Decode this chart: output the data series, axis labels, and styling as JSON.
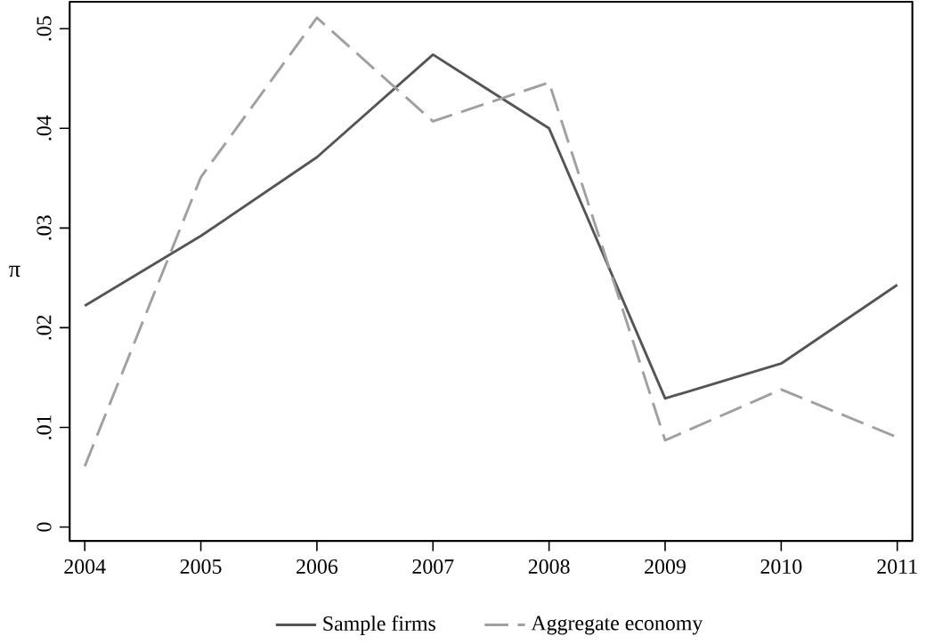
{
  "chart_data": {
    "type": "line",
    "ylabel": "π",
    "x": [
      2004,
      2005,
      2006,
      2007,
      2008,
      2009,
      2010,
      2011
    ],
    "series": [
      {
        "name": "Sample firms",
        "color": "#555555",
        "line_style": "solid",
        "values": [
          0.0222,
          0.0292,
          0.0371,
          0.0474,
          0.04,
          0.0129,
          0.0164,
          0.0243
        ]
      },
      {
        "name": "Aggregate economy",
        "color": "#a0a0a0",
        "line_style": "dashed",
        "values": [
          0.0061,
          0.0351,
          0.0511,
          0.0407,
          0.0446,
          0.0087,
          0.0138,
          0.009
        ]
      }
    ],
    "xlim": [
      2003.87,
      2011.13
    ],
    "ylim": [
      -0.0014,
      0.0527
    ],
    "xticks": [
      2004,
      2005,
      2006,
      2007,
      2008,
      2009,
      2010,
      2011
    ],
    "yticks": [
      0,
      {
        "value": 0.01,
        "label": ".01"
      },
      {
        "value": 0.02,
        "label": ".02"
      },
      {
        "value": 0.03,
        "label": ".03"
      },
      {
        "value": 0.04,
        "label": ".04"
      },
      {
        "value": 0.05,
        "label": ".05"
      }
    ],
    "grid": false,
    "legend": "bottom",
    "marker": "none"
  }
}
